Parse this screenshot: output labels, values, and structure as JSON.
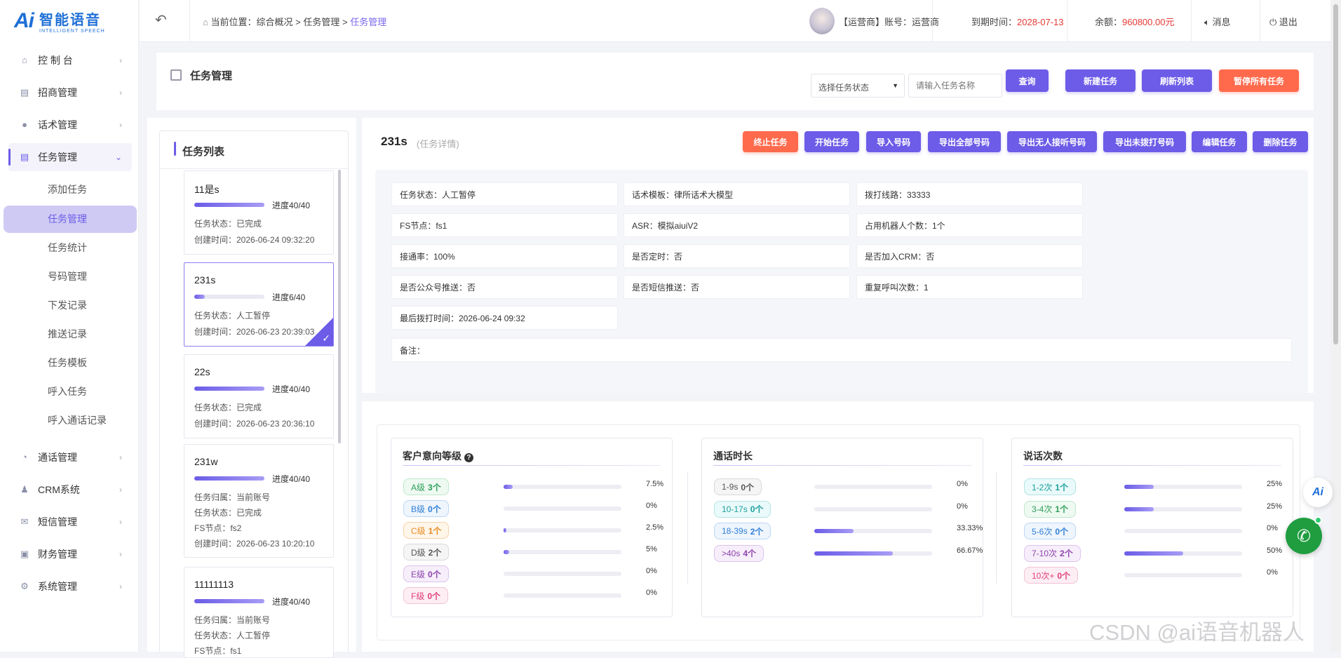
{
  "logo": {
    "mark": "Ai",
    "cn": "智能语音",
    "en": "INTELLIGENT SPEECH"
  },
  "sidebar": {
    "items": [
      {
        "label": "控 制 台",
        "icon": "home-icon"
      },
      {
        "label": "招商管理",
        "icon": "clipboard-icon"
      },
      {
        "label": "话术管理",
        "icon": "mic-icon"
      },
      {
        "label": "任务管理",
        "icon": "clipboard-icon"
      },
      {
        "label": "通话管理",
        "icon": "phone-icon"
      },
      {
        "label": "CRM系统",
        "icon": "user-icon"
      },
      {
        "label": "短信管理",
        "icon": "mail-icon"
      },
      {
        "label": "财务管理",
        "icon": "wallet-icon"
      },
      {
        "label": "系统管理",
        "icon": "gear-icon"
      }
    ],
    "sub_items": [
      "添加任务",
      "任务管理",
      "任务统计",
      "号码管理",
      "下发记录",
      "推送记录",
      "任务模板",
      "呼入任务",
      "呼入通话记录"
    ]
  },
  "header": {
    "breadcrumb_prefix": "当前位置：",
    "crumb1": "综合概况",
    "crumb2": "任务管理",
    "crumb3": "任务管理",
    "sep": ">",
    "account": "【运营商】账号：运营商",
    "expire_label": "到期时间：",
    "expire_value": "2028-07-13",
    "balance_label": "余额：",
    "balance_value": "960800.00元",
    "message": "消息",
    "logout": "退出"
  },
  "page": {
    "title": "任务管理",
    "status_select": "选择任务状态",
    "name_placeholder": "请输入任务名称",
    "query": "查询",
    "new_task": "新建任务",
    "refresh": "刷新列表",
    "pause_all": "暂停所有任务"
  },
  "task_list": {
    "title": "任务列表",
    "tasks": [
      {
        "name": "11是s",
        "progress": "进度40/40",
        "fraction": 1.0,
        "lines": [
          "任务状态：已完成",
          "创建时间：2026-06-24 09:32:20"
        ]
      },
      {
        "name": "231s",
        "progress": "进度6/40",
        "fraction": 0.15,
        "lines": [
          "任务状态：人工暂停",
          "创建时间：2026-06-23 20:39:03"
        ]
      },
      {
        "name": "22s",
        "progress": "进度40/40",
        "fraction": 1.0,
        "lines": [
          "任务状态：已完成",
          "创建时间：2026-06-23 20:36:10"
        ]
      },
      {
        "name": "231w",
        "progress": "进度40/40",
        "fraction": 1.0,
        "lines": [
          "任务归属：当前账号",
          "任务状态：已完成",
          "FS节点：fs2",
          "创建时间：2026-06-23 10:20:10"
        ]
      },
      {
        "name": "11111113",
        "progress": "进度40/40",
        "fraction": 1.0,
        "lines": [
          "任务归属：当前账号",
          "任务状态：人工暂停",
          "FS节点：fs1"
        ]
      }
    ]
  },
  "detail": {
    "name": "231s",
    "subtitle": "(任务详情)",
    "actions": [
      "终止任务",
      "开始任务",
      "导入号码",
      "导出全部号码",
      "导出无人接听号码",
      "导出未拨打号码",
      "编辑任务",
      "删除任务"
    ],
    "fields": [
      "任务状态：人工暂停",
      "话术模板：律所话术大模型",
      "拨打线路：33333",
      "FS节点：fs1",
      "ASR：模拟aiuiV2",
      "占用机器人个数：1个",
      "接通率：100%",
      "是否定时：否",
      "是否加入CRM：否",
      "是否公众号推送：否",
      "是否短信推送：否",
      "重复呼叫次数：1",
      "最后拨打时间：2026-06-24 09:32",
      "备注："
    ]
  },
  "stats": [
    {
      "title": "客户意向等级",
      "rows": [
        {
          "label": "A级",
          "count": "3个",
          "pct": "7.5%",
          "value": 7.5,
          "color": "#2e9e5b",
          "bg": "#eefaf1",
          "border": "#bfe6cc"
        },
        {
          "label": "B级",
          "count": "0个",
          "pct": "0%",
          "value": 0,
          "color": "#2f7fd6",
          "bg": "#eef5fd",
          "border": "#bcd6f3"
        },
        {
          "label": "C级",
          "count": "1个",
          "pct": "2.5%",
          "value": 2.5,
          "color": "#e88a1f",
          "bg": "#fff6ea",
          "border": "#f5d3a6"
        },
        {
          "label": "D级",
          "count": "2个",
          "pct": "5%",
          "value": 5,
          "color": "#555555",
          "bg": "#f5f5f5",
          "border": "#d9d9d9"
        },
        {
          "label": "E级",
          "count": "0个",
          "pct": "0%",
          "value": 0,
          "color": "#8e44ad",
          "bg": "#f6eefa",
          "border": "#dcc3ec"
        },
        {
          "label": "F级",
          "count": "0个",
          "pct": "0%",
          "value": 0,
          "color": "#e0407a",
          "bg": "#fdeef4",
          "border": "#f3c1d5"
        }
      ]
    },
    {
      "title": "通话时长",
      "rows": [
        {
          "label": "1-9s",
          "count": "0个",
          "pct": "0%",
          "value": 0,
          "color": "#555555",
          "bg": "#f5f5f5",
          "border": "#d9d9d9"
        },
        {
          "label": "10-17s",
          "count": "0个",
          "pct": "0%",
          "value": 0,
          "color": "#1a9e9e",
          "bg": "#eafafa",
          "border": "#b3e3e3"
        },
        {
          "label": "18-39s",
          "count": "2个",
          "pct": "33.33%",
          "value": 33.33,
          "color": "#2f7fd6",
          "bg": "#eef5fd",
          "border": "#bcd6f3"
        },
        {
          "label": ">40s",
          "count": "4个",
          "pct": "66.67%",
          "value": 66.67,
          "color": "#8e44ad",
          "bg": "#f6eefa",
          "border": "#dcc3ec"
        }
      ]
    },
    {
      "title": "说话次数",
      "rows": [
        {
          "label": "1-2次",
          "count": "1个",
          "pct": "25%",
          "value": 25,
          "color": "#1a9e9e",
          "bg": "#eafafa",
          "border": "#b3e3e3"
        },
        {
          "label": "3-4次",
          "count": "1个",
          "pct": "25%",
          "value": 25,
          "color": "#2e9e5b",
          "bg": "#eefaf1",
          "border": "#bfe6cc"
        },
        {
          "label": "5-6次",
          "count": "0个",
          "pct": "0%",
          "value": 0,
          "color": "#2f7fd6",
          "bg": "#eef5fd",
          "border": "#bcd6f3"
        },
        {
          "label": "7-10次",
          "count": "2个",
          "pct": "50%",
          "value": 50,
          "color": "#8e44ad",
          "bg": "#f6eefa",
          "border": "#dcc3ec"
        },
        {
          "label": "10次+",
          "count": "0个",
          "pct": "0%",
          "value": 0,
          "color": "#e0407a",
          "bg": "#fdeef4",
          "border": "#f3c1d5"
        }
      ]
    }
  ],
  "watermark": "CSDN @ai语音机器人",
  "float_logo": "Ai"
}
